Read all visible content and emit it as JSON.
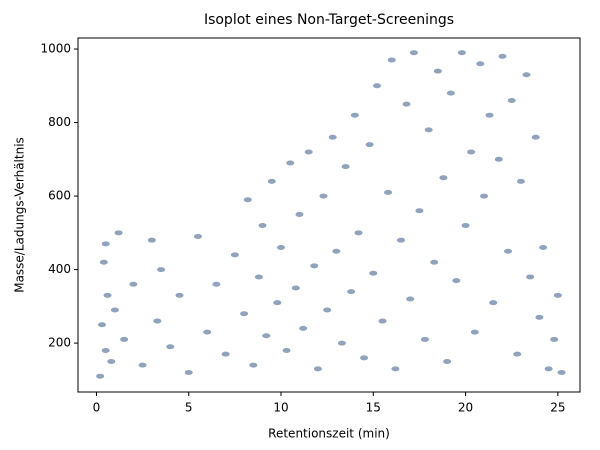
{
  "chart_data": {
    "type": "scatter",
    "title": "Isoplot eines Non-Target-Screenings",
    "x_label": "Retentionszeit (min)",
    "y_label": "Masse/Ladungs-Verhältnis",
    "xlim": [
      -1,
      26.2
    ],
    "ylim": [
      67,
      1030
    ],
    "xticks": [
      0,
      5,
      10,
      15,
      20,
      25
    ],
    "yticks": [
      200,
      400,
      600,
      800,
      1000
    ],
    "series": [
      {
        "color": "#08306b",
        "x": [
          0.2,
          0.3,
          0.4,
          0.5,
          0.5,
          0.6,
          0.8,
          1,
          1.2,
          1.5,
          2,
          2.5,
          3,
          3.3,
          3.5,
          4,
          4.5,
          5,
          5.5,
          6,
          6.5,
          7,
          7.5,
          8,
          8.2,
          8.5,
          8.8,
          9,
          9.2,
          9.5,
          9.8,
          10,
          10.3,
          10.5,
          10.8,
          11,
          11.2,
          11.5,
          11.8,
          12,
          12.3,
          12.5,
          12.8,
          13,
          13.3,
          13.5,
          13.8,
          14,
          14.2,
          14.5,
          14.8,
          15,
          15.2,
          15.5,
          15.8,
          16,
          16.2,
          16.5,
          16.8,
          17,
          17.2,
          17.5,
          17.8,
          18,
          18.3,
          18.5,
          18.8,
          19,
          19.2,
          19.5,
          19.8,
          20,
          20.3,
          20.5,
          20.8,
          21,
          21.3,
          21.5,
          21.8,
          22,
          22.3,
          22.5,
          22.8,
          23,
          23.3,
          23.5,
          23.8,
          24,
          24.2,
          24.5,
          24.8,
          25,
          25.2
        ],
        "values": [
          110,
          250,
          420,
          180,
          470,
          330,
          150,
          290,
          500,
          210,
          360,
          140,
          480,
          260,
          400,
          190,
          330,
          120,
          490,
          230,
          360,
          170,
          440,
          280,
          590,
          140,
          380,
          520,
          220,
          640,
          310,
          460,
          180,
          690,
          350,
          550,
          240,
          720,
          410,
          130,
          600,
          290,
          760,
          450,
          200,
          680,
          340,
          820,
          500,
          160,
          740,
          390,
          900,
          260,
          610,
          970,
          130,
          480,
          850,
          320,
          990,
          560,
          210,
          780,
          420,
          940,
          650,
          150,
          880,
          370,
          990,
          520,
          720,
          230,
          960,
          600,
          820,
          310,
          700,
          980,
          450,
          860,
          170,
          640,
          930,
          380,
          760,
          270,
          460,
          130,
          210,
          330,
          120
        ]
      }
    ]
  }
}
